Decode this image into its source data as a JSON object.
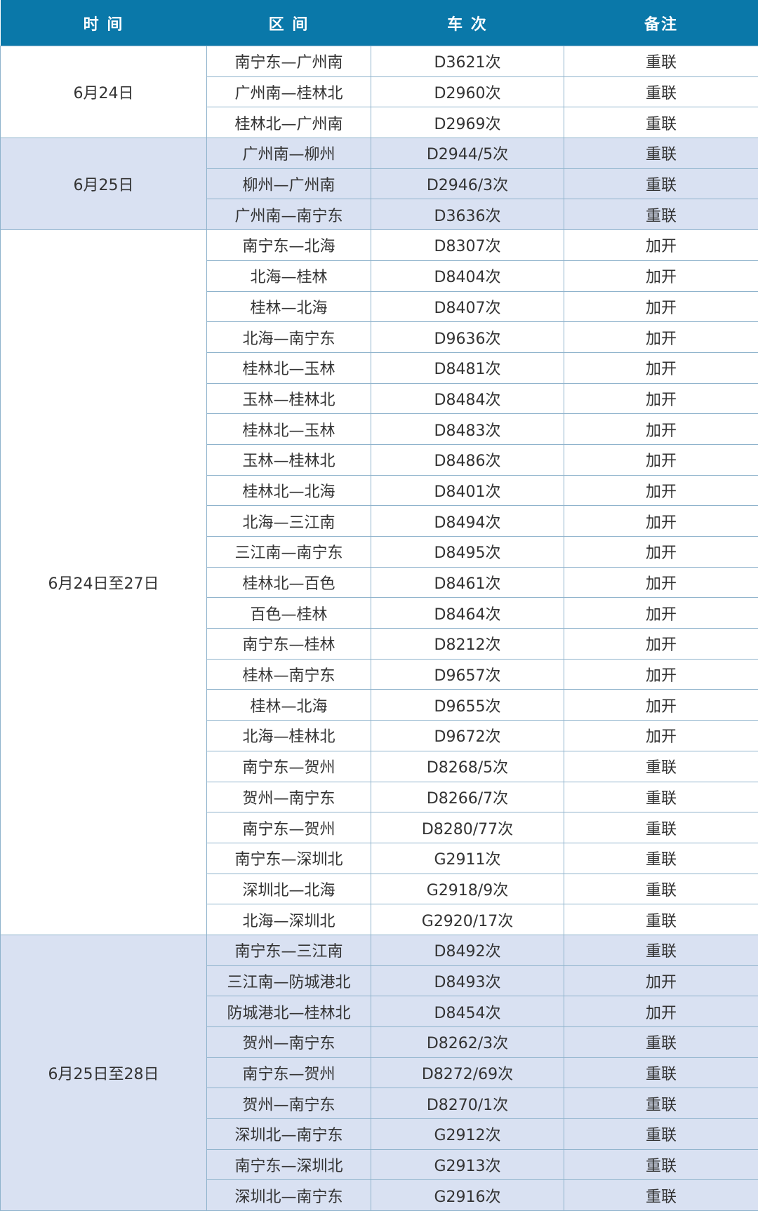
{
  "header": {
    "date": "时 间",
    "section": "区 间",
    "train": "车 次",
    "note": "备注"
  },
  "colors": {
    "header_bg": "#0a78a9",
    "band_bg": "#d9e1f2",
    "grid": "#8fb3cc"
  },
  "groups": [
    {
      "date": "6月24日",
      "band": false,
      "rows": [
        [
          "南宁东—广州南",
          "D3621次",
          "重联"
        ],
        [
          "广州南—桂林北",
          "D2960次",
          "重联"
        ],
        [
          "桂林北—广州南",
          "D2969次",
          "重联"
        ]
      ]
    },
    {
      "date": "6月25日",
      "band": true,
      "rows": [
        [
          "广州南—柳州",
          "D2944/5次",
          "重联"
        ],
        [
          "柳州—广州南",
          "D2946/3次",
          "重联"
        ],
        [
          "广州南—南宁东",
          "D3636次",
          "重联"
        ]
      ]
    },
    {
      "date": "6月24日至27日",
      "band": false,
      "rows": [
        [
          "南宁东—北海",
          "D8307次",
          "加开"
        ],
        [
          "北海—桂林",
          "D8404次",
          "加开"
        ],
        [
          "桂林—北海",
          "D8407次",
          "加开"
        ],
        [
          "北海—南宁东",
          "D9636次",
          "加开"
        ],
        [
          "桂林北—玉林",
          "D8481次",
          "加开"
        ],
        [
          "玉林—桂林北",
          "D8484次",
          "加开"
        ],
        [
          "桂林北—玉林",
          "D8483次",
          "加开"
        ],
        [
          "玉林—桂林北",
          "D8486次",
          "加开"
        ],
        [
          "桂林北—北海",
          "D8401次",
          "加开"
        ],
        [
          "北海—三江南",
          "D8494次",
          "加开"
        ],
        [
          "三江南—南宁东",
          "D8495次",
          "加开"
        ],
        [
          "桂林北—百色",
          "D8461次",
          "加开"
        ],
        [
          "百色—桂林",
          "D8464次",
          "加开"
        ],
        [
          "南宁东—桂林",
          "D8212次",
          "加开"
        ],
        [
          "桂林—南宁东",
          "D9657次",
          "加开"
        ],
        [
          "桂林—北海",
          "D9655次",
          "加开"
        ],
        [
          "北海—桂林北",
          "D9672次",
          "加开"
        ],
        [
          "南宁东—贺州",
          "D8268/5次",
          "重联"
        ],
        [
          "贺州—南宁东",
          "D8266/7次",
          "重联"
        ],
        [
          "南宁东—贺州",
          "D8280/77次",
          "重联"
        ],
        [
          "南宁东—深圳北",
          "G2911次",
          "重联"
        ],
        [
          "深圳北—北海",
          "G2918/9次",
          "重联"
        ],
        [
          "北海—深圳北",
          "G2920/17次",
          "重联"
        ]
      ]
    },
    {
      "date": "6月25日至28日",
      "band": true,
      "rows": [
        [
          "南宁东—三江南",
          "D8492次",
          "重联"
        ],
        [
          "三江南—防城港北",
          "D8493次",
          "加开"
        ],
        [
          "防城港北—桂林北",
          "D8454次",
          "加开"
        ],
        [
          "贺州—南宁东",
          "D8262/3次",
          "重联"
        ],
        [
          "南宁东—贺州",
          "D8272/69次",
          "重联"
        ],
        [
          "贺州—南宁东",
          "D8270/1次",
          "重联"
        ],
        [
          "深圳北—南宁东",
          "G2912次",
          "重联"
        ],
        [
          "南宁东—深圳北",
          "G2913次",
          "重联"
        ],
        [
          "深圳北—南宁东",
          "G2916次",
          "重联"
        ]
      ]
    }
  ]
}
